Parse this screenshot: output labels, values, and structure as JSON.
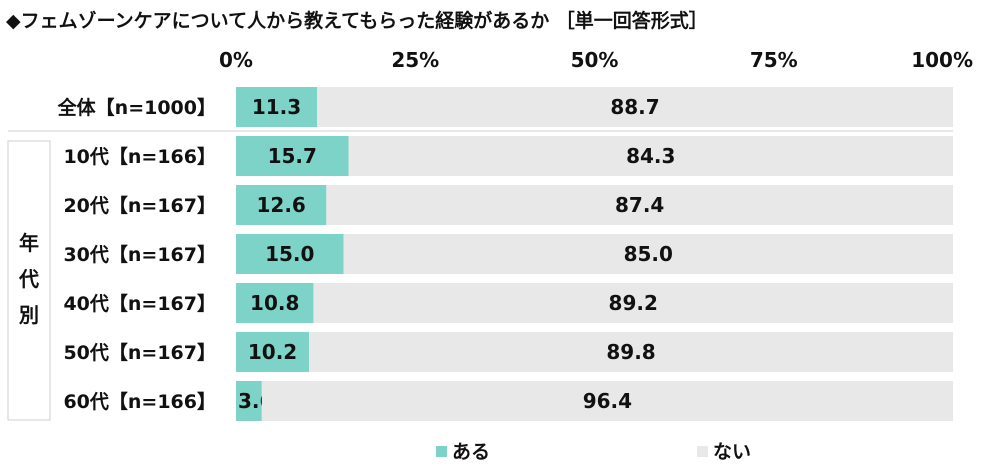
{
  "title": "◆フェムゾーンケアについて人から教えてもらった経験があるか ［単一回答形式］",
  "group_label": "年代別",
  "chart_data": {
    "type": "bar",
    "stacked": true,
    "orientation": "horizontal",
    "percent": true,
    "categories": [
      "全体【n=1000】",
      "10代【n=166】",
      "20代【n=167】",
      "30代【n=167】",
      "40代【n=167】",
      "50代【n=167】",
      "60代【n=166】"
    ],
    "series": [
      {
        "name": "ある",
        "color": "#7dd3c8",
        "values": [
          11.3,
          15.7,
          12.6,
          15.0,
          10.8,
          10.2,
          3.6
        ]
      },
      {
        "name": "ない",
        "color": "#e8e8e8",
        "values": [
          88.7,
          84.3,
          87.4,
          85.0,
          89.2,
          89.8,
          96.4
        ]
      }
    ],
    "xlim": [
      0,
      100
    ],
    "xticks": [
      "0%",
      "25%",
      "50%",
      "75%",
      "100%"
    ],
    "legend_position": "bottom"
  }
}
